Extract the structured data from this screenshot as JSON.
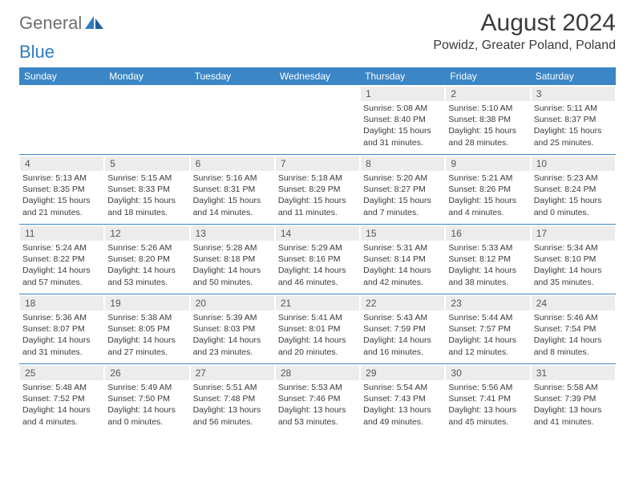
{
  "logo": {
    "word1": "General",
    "word2": "Blue"
  },
  "title": "August 2024",
  "location": "Powidz, Greater Poland, Poland",
  "colors": {
    "header_bg": "#3b86c6",
    "daynum_bg": "#ececec",
    "rule": "#3b86c6",
    "logo_gray": "#6f6f6f",
    "logo_blue": "#2f7bbf"
  },
  "dow": [
    "Sunday",
    "Monday",
    "Tuesday",
    "Wednesday",
    "Thursday",
    "Friday",
    "Saturday"
  ],
  "weeks": [
    [
      {
        "n": "",
        "sr": "",
        "ss": "",
        "dl": ""
      },
      {
        "n": "",
        "sr": "",
        "ss": "",
        "dl": ""
      },
      {
        "n": "",
        "sr": "",
        "ss": "",
        "dl": ""
      },
      {
        "n": "",
        "sr": "",
        "ss": "",
        "dl": ""
      },
      {
        "n": "1",
        "sr": "Sunrise: 5:08 AM",
        "ss": "Sunset: 8:40 PM",
        "dl": "Daylight: 15 hours and 31 minutes."
      },
      {
        "n": "2",
        "sr": "Sunrise: 5:10 AM",
        "ss": "Sunset: 8:38 PM",
        "dl": "Daylight: 15 hours and 28 minutes."
      },
      {
        "n": "3",
        "sr": "Sunrise: 5:11 AM",
        "ss": "Sunset: 8:37 PM",
        "dl": "Daylight: 15 hours and 25 minutes."
      }
    ],
    [
      {
        "n": "4",
        "sr": "Sunrise: 5:13 AM",
        "ss": "Sunset: 8:35 PM",
        "dl": "Daylight: 15 hours and 21 minutes."
      },
      {
        "n": "5",
        "sr": "Sunrise: 5:15 AM",
        "ss": "Sunset: 8:33 PM",
        "dl": "Daylight: 15 hours and 18 minutes."
      },
      {
        "n": "6",
        "sr": "Sunrise: 5:16 AM",
        "ss": "Sunset: 8:31 PM",
        "dl": "Daylight: 15 hours and 14 minutes."
      },
      {
        "n": "7",
        "sr": "Sunrise: 5:18 AM",
        "ss": "Sunset: 8:29 PM",
        "dl": "Daylight: 15 hours and 11 minutes."
      },
      {
        "n": "8",
        "sr": "Sunrise: 5:20 AM",
        "ss": "Sunset: 8:27 PM",
        "dl": "Daylight: 15 hours and 7 minutes."
      },
      {
        "n": "9",
        "sr": "Sunrise: 5:21 AM",
        "ss": "Sunset: 8:26 PM",
        "dl": "Daylight: 15 hours and 4 minutes."
      },
      {
        "n": "10",
        "sr": "Sunrise: 5:23 AM",
        "ss": "Sunset: 8:24 PM",
        "dl": "Daylight: 15 hours and 0 minutes."
      }
    ],
    [
      {
        "n": "11",
        "sr": "Sunrise: 5:24 AM",
        "ss": "Sunset: 8:22 PM",
        "dl": "Daylight: 14 hours and 57 minutes."
      },
      {
        "n": "12",
        "sr": "Sunrise: 5:26 AM",
        "ss": "Sunset: 8:20 PM",
        "dl": "Daylight: 14 hours and 53 minutes."
      },
      {
        "n": "13",
        "sr": "Sunrise: 5:28 AM",
        "ss": "Sunset: 8:18 PM",
        "dl": "Daylight: 14 hours and 50 minutes."
      },
      {
        "n": "14",
        "sr": "Sunrise: 5:29 AM",
        "ss": "Sunset: 8:16 PM",
        "dl": "Daylight: 14 hours and 46 minutes."
      },
      {
        "n": "15",
        "sr": "Sunrise: 5:31 AM",
        "ss": "Sunset: 8:14 PM",
        "dl": "Daylight: 14 hours and 42 minutes."
      },
      {
        "n": "16",
        "sr": "Sunrise: 5:33 AM",
        "ss": "Sunset: 8:12 PM",
        "dl": "Daylight: 14 hours and 38 minutes."
      },
      {
        "n": "17",
        "sr": "Sunrise: 5:34 AM",
        "ss": "Sunset: 8:10 PM",
        "dl": "Daylight: 14 hours and 35 minutes."
      }
    ],
    [
      {
        "n": "18",
        "sr": "Sunrise: 5:36 AM",
        "ss": "Sunset: 8:07 PM",
        "dl": "Daylight: 14 hours and 31 minutes."
      },
      {
        "n": "19",
        "sr": "Sunrise: 5:38 AM",
        "ss": "Sunset: 8:05 PM",
        "dl": "Daylight: 14 hours and 27 minutes."
      },
      {
        "n": "20",
        "sr": "Sunrise: 5:39 AM",
        "ss": "Sunset: 8:03 PM",
        "dl": "Daylight: 14 hours and 23 minutes."
      },
      {
        "n": "21",
        "sr": "Sunrise: 5:41 AM",
        "ss": "Sunset: 8:01 PM",
        "dl": "Daylight: 14 hours and 20 minutes."
      },
      {
        "n": "22",
        "sr": "Sunrise: 5:43 AM",
        "ss": "Sunset: 7:59 PM",
        "dl": "Daylight: 14 hours and 16 minutes."
      },
      {
        "n": "23",
        "sr": "Sunrise: 5:44 AM",
        "ss": "Sunset: 7:57 PM",
        "dl": "Daylight: 14 hours and 12 minutes."
      },
      {
        "n": "24",
        "sr": "Sunrise: 5:46 AM",
        "ss": "Sunset: 7:54 PM",
        "dl": "Daylight: 14 hours and 8 minutes."
      }
    ],
    [
      {
        "n": "25",
        "sr": "Sunrise: 5:48 AM",
        "ss": "Sunset: 7:52 PM",
        "dl": "Daylight: 14 hours and 4 minutes."
      },
      {
        "n": "26",
        "sr": "Sunrise: 5:49 AM",
        "ss": "Sunset: 7:50 PM",
        "dl": "Daylight: 14 hours and 0 minutes."
      },
      {
        "n": "27",
        "sr": "Sunrise: 5:51 AM",
        "ss": "Sunset: 7:48 PM",
        "dl": "Daylight: 13 hours and 56 minutes."
      },
      {
        "n": "28",
        "sr": "Sunrise: 5:53 AM",
        "ss": "Sunset: 7:46 PM",
        "dl": "Daylight: 13 hours and 53 minutes."
      },
      {
        "n": "29",
        "sr": "Sunrise: 5:54 AM",
        "ss": "Sunset: 7:43 PM",
        "dl": "Daylight: 13 hours and 49 minutes."
      },
      {
        "n": "30",
        "sr": "Sunrise: 5:56 AM",
        "ss": "Sunset: 7:41 PM",
        "dl": "Daylight: 13 hours and 45 minutes."
      },
      {
        "n": "31",
        "sr": "Sunrise: 5:58 AM",
        "ss": "Sunset: 7:39 PM",
        "dl": "Daylight: 13 hours and 41 minutes."
      }
    ]
  ]
}
